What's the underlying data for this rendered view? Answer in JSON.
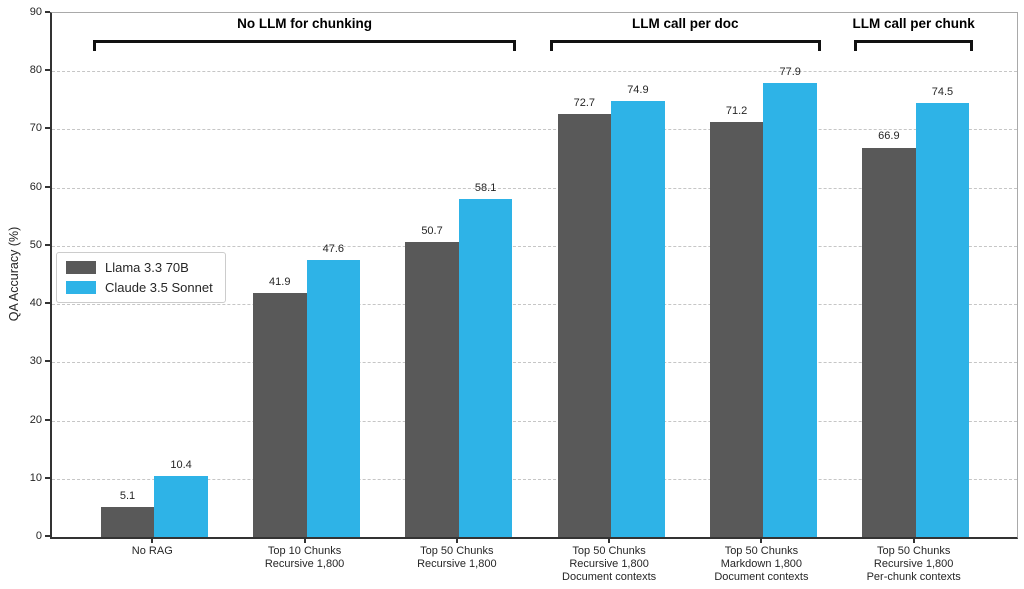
{
  "chart_data": {
    "type": "bar",
    "title": "",
    "ylabel": "QA Accuracy (%)",
    "ylim": [
      0,
      90
    ],
    "ytick_step": 10,
    "grid": "horizontal dashed gridlines at each 10 from 10 to 80",
    "legend_position": "center-left",
    "categories": [
      [
        "No RAG"
      ],
      [
        "Top 10 Chunks",
        "Recursive 1,800"
      ],
      [
        "Top 50 Chunks",
        "Recursive 1,800"
      ],
      [
        "Top 50 Chunks",
        "Recursive 1,800",
        "Document contexts"
      ],
      [
        "Top 50 Chunks",
        "Markdown 1,800",
        "Document contexts"
      ],
      [
        "Top 50 Chunks",
        "Recursive 1,800",
        "Per-chunk contexts"
      ]
    ],
    "series": [
      {
        "name": "Llama 3.3 70B",
        "color": "#595959",
        "values": [
          5.1,
          41.9,
          50.7,
          72.7,
          71.2,
          66.9
        ]
      },
      {
        "name": "Claude 3.5 Sonnet",
        "color": "#2eb3e7",
        "values": [
          10.4,
          47.6,
          58.1,
          74.9,
          77.9,
          74.5
        ]
      }
    ],
    "annotations": [
      {
        "label": "No LLM for chunking",
        "from_group": 0,
        "to_group": 2
      },
      {
        "label": "LLM call per doc",
        "from_group": 3,
        "to_group": 4
      },
      {
        "label": "LLM call per chunk",
        "from_group": 5,
        "to_group": 5
      }
    ]
  }
}
